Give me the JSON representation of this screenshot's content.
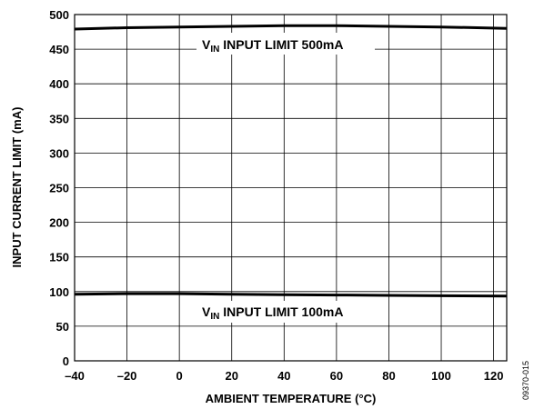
{
  "chart_data": {
    "type": "line",
    "xlabel": "AMBIENT TEMPERATURE (°C)",
    "ylabel": "INPUT CURRENT LIMIT (mA)",
    "xlim": [
      -40,
      125
    ],
    "ylim": [
      0,
      500
    ],
    "x_ticks": [
      -40,
      -20,
      0,
      20,
      40,
      60,
      80,
      100,
      120
    ],
    "y_ticks": [
      0,
      50,
      100,
      150,
      200,
      250,
      300,
      350,
      400,
      450,
      500
    ],
    "x_tick_labels": [
      "–40",
      "–20",
      "0",
      "20",
      "40",
      "60",
      "80",
      "100",
      "120"
    ],
    "y_tick_labels": [
      "0",
      "50",
      "100",
      "150",
      "200",
      "250",
      "300",
      "350",
      "400",
      "450",
      "500"
    ],
    "grid": true,
    "series": [
      {
        "x": [
          -40,
          -20,
          0,
          20,
          40,
          60,
          80,
          100,
          125
        ],
        "y": [
          479,
          481,
          482,
          483,
          484,
          484,
          483,
          482,
          480
        ]
      },
      {
        "x": [
          -40,
          -20,
          0,
          20,
          40,
          60,
          80,
          100,
          125
        ],
        "y": [
          96,
          97,
          97,
          96,
          95.5,
          95,
          94.5,
          94,
          93.5
        ]
      }
    ],
    "annotations": [
      {
        "main": "V",
        "sub": "IN",
        "rest": " INPUT LIMIT 500mA"
      },
      {
        "main": "V",
        "sub": "IN",
        "rest": " INPUT LIMIT 100mA"
      }
    ],
    "figure_id": "09370-015"
  }
}
